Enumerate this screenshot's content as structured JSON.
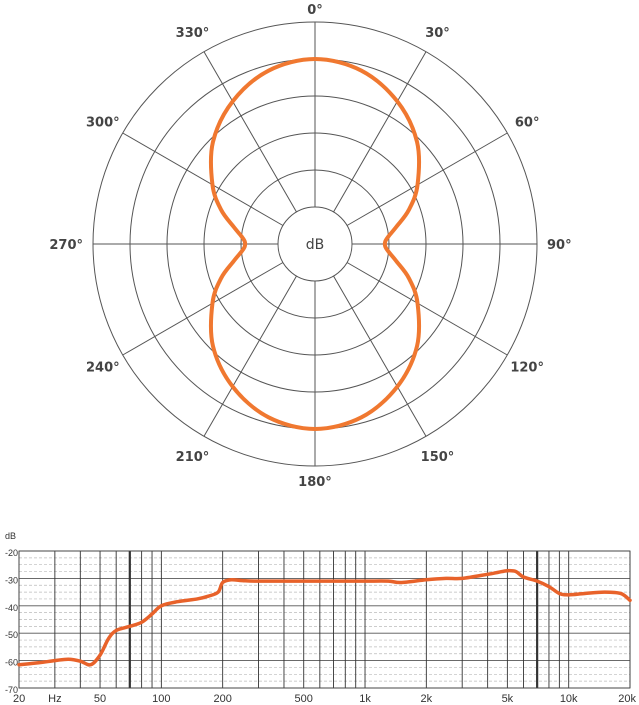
{
  "chart_data": [
    {
      "type": "polar",
      "center_label": "dB",
      "angle_labels": [
        "0°",
        "30°",
        "60°",
        "90°",
        "120°",
        "150°",
        "180°",
        "210°",
        "240°",
        "270°",
        "300°",
        "330°"
      ],
      "ring_count": 5,
      "color": "#f07830",
      "series": [
        {
          "pattern": "figure-8 (bidirectional)",
          "points": [
            {
              "angle": 0,
              "r": 0.8
            },
            {
              "angle": 15,
              "r": 0.77
            },
            {
              "angle": 30,
              "r": 0.69
            },
            {
              "angle": 45,
              "r": 0.58
            },
            {
              "angle": 60,
              "r": 0.44
            },
            {
              "angle": 70,
              "r": 0.34
            },
            {
              "angle": 78,
              "r": 0.25
            },
            {
              "angle": 84,
              "r": 0.2
            },
            {
              "angle": 88,
              "r": 0.18
            },
            {
              "angle": 92,
              "r": 0.18
            },
            {
              "angle": 96,
              "r": 0.2
            },
            {
              "angle": 102,
              "r": 0.25
            },
            {
              "angle": 110,
              "r": 0.34
            },
            {
              "angle": 120,
              "r": 0.44
            },
            {
              "angle": 135,
              "r": 0.58
            },
            {
              "angle": 150,
              "r": 0.69
            },
            {
              "angle": 165,
              "r": 0.77
            },
            {
              "angle": 180,
              "r": 0.8
            },
            {
              "angle": 195,
              "r": 0.77
            },
            {
              "angle": 210,
              "r": 0.69
            },
            {
              "angle": 225,
              "r": 0.58
            },
            {
              "angle": 240,
              "r": 0.44
            },
            {
              "angle": 250,
              "r": 0.34
            },
            {
              "angle": 258,
              "r": 0.25
            },
            {
              "angle": 264,
              "r": 0.2
            },
            {
              "angle": 268,
              "r": 0.18
            },
            {
              "angle": 272,
              "r": 0.18
            },
            {
              "angle": 276,
              "r": 0.2
            },
            {
              "angle": 282,
              "r": 0.25
            },
            {
              "angle": 290,
              "r": 0.34
            },
            {
              "angle": 300,
              "r": 0.44
            },
            {
              "angle": 315,
              "r": 0.58
            },
            {
              "angle": 330,
              "r": 0.69
            },
            {
              "angle": 345,
              "r": 0.77
            }
          ]
        }
      ]
    },
    {
      "type": "line",
      "ylabel": "dB",
      "x_scale": "log",
      "xlim": [
        20,
        20000
      ],
      "ylim": [
        -70,
        -20
      ],
      "y_ticks": [
        -20,
        -30,
        -40,
        -50,
        -60,
        -70
      ],
      "x_ticks": [
        {
          "value": 20,
          "label": "20"
        },
        {
          "value": 30,
          "label": "Hz"
        },
        {
          "value": 50,
          "label": "50"
        },
        {
          "value": 100,
          "label": "100"
        },
        {
          "value": 200,
          "label": "200"
        },
        {
          "value": 500,
          "label": "500"
        },
        {
          "value": 1000,
          "label": "1k"
        },
        {
          "value": 2000,
          "label": "2k"
        },
        {
          "value": 5000,
          "label": "5k"
        },
        {
          "value": 10000,
          "label": "10k"
        },
        {
          "value": 20000,
          "label": "20k"
        }
      ],
      "color": "#e8622a",
      "series": [
        {
          "x": [
            20,
            25,
            30,
            35,
            40,
            45,
            50,
            55,
            60,
            70,
            80,
            90,
            100,
            120,
            150,
            170,
            190,
            200,
            220,
            250,
            300,
            500,
            700,
            1000,
            1300,
            1500,
            2000,
            2500,
            3000,
            4000,
            4500,
            5000,
            5500,
            6000,
            7000,
            8000,
            9000,
            10000,
            12000,
            15000,
            18000,
            20000
          ],
          "y": [
            -61.5,
            -60.8,
            -60.0,
            -59.5,
            -60.2,
            -61.5,
            -58.0,
            -52.0,
            -49.0,
            -47.5,
            -46.0,
            -43.0,
            -40.0,
            -38.5,
            -37.5,
            -36.5,
            -35.0,
            -31.5,
            -30.5,
            -30.8,
            -31.0,
            -31.0,
            -31.0,
            -31.0,
            -31.0,
            -31.5,
            -30.5,
            -30.0,
            -30.0,
            -28.5,
            -27.8,
            -27.2,
            -27.5,
            -29.5,
            -31.0,
            -33.0,
            -35.5,
            -36.0,
            -35.5,
            -35.0,
            -35.5,
            -38.0
          ]
        }
      ]
    }
  ]
}
